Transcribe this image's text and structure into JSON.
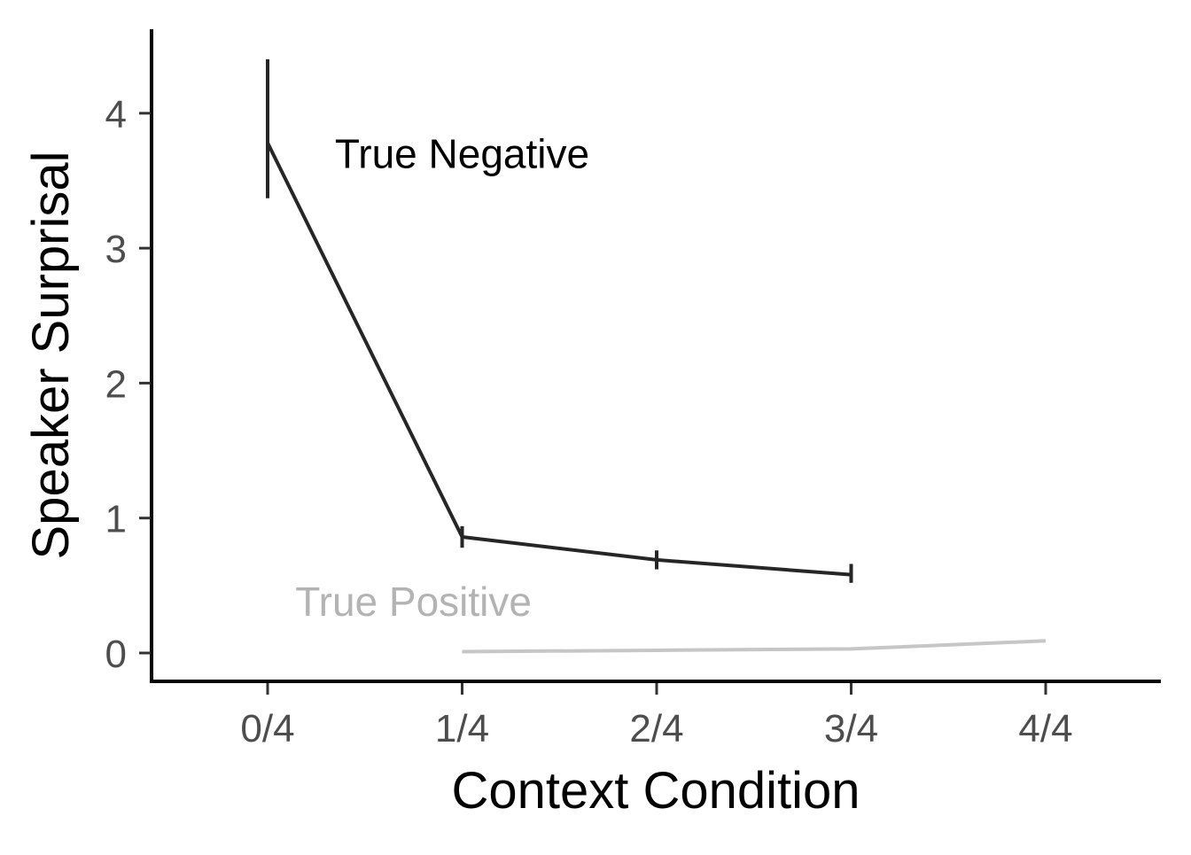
{
  "chart_data": {
    "type": "line",
    "title": "",
    "xlabel": "Context Condition",
    "ylabel": "Speaker Surprisal",
    "categories": [
      "0/4",
      "1/4",
      "2/4",
      "3/4",
      "4/4"
    ],
    "y_ticks": [
      "0",
      "1",
      "2",
      "3",
      "4"
    ],
    "ylim": [
      -0.2,
      4.6
    ],
    "grid": false,
    "legend": "none",
    "series": [
      {
        "name": "True Negative",
        "color": "#262626",
        "values": [
          3.78,
          0.86,
          0.69,
          0.58,
          null
        ],
        "error_low": [
          3.37,
          0.78,
          0.62,
          0.52,
          null
        ],
        "error_high": [
          4.4,
          0.94,
          0.76,
          0.66,
          null
        ]
      },
      {
        "name": "True Positive",
        "color": "#c6c6c6",
        "values": [
          null,
          0.01,
          0.02,
          0.03,
          0.09
        ]
      }
    ],
    "annotations": [
      {
        "text": "True Negative",
        "x": 1.0,
        "y": 3.7,
        "color": "#000000"
      },
      {
        "text": "True Positive",
        "x": 0.75,
        "y": 0.38,
        "color": "#b3b3b3"
      }
    ]
  }
}
